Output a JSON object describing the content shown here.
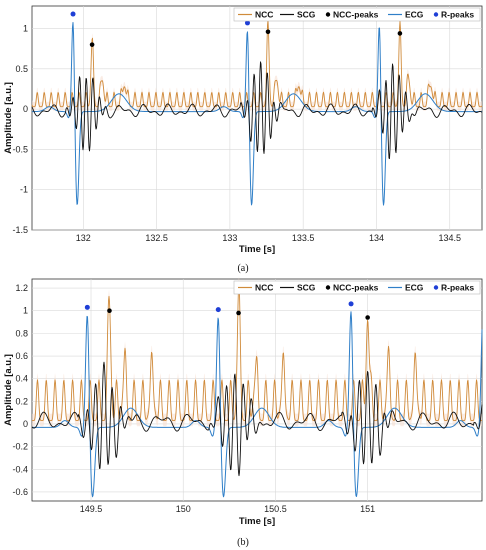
{
  "colors": {
    "NCC": "#d08b3b",
    "SCG": "#111111",
    "NCC-peaks": "#000000",
    "ECG": "#2f7fc8",
    "R-peaks": "#1f3fd6",
    "band": "#f6dccd"
  },
  "chart_data": [
    {
      "type": "line",
      "caption": "(a)",
      "xlabel": "Time [s]",
      "ylabel": "Amplitude [a.u.]",
      "xlim": [
        131.65,
        134.72
      ],
      "ylim": [
        -1.5,
        1.28
      ],
      "xticks": [
        "132",
        "132.5",
        "133",
        "133.5",
        "134",
        "134.5"
      ],
      "xtick_values": [
        132,
        132.5,
        133,
        133.5,
        134,
        134.5
      ],
      "yticks": [
        "-1.5",
        "-1",
        "-0.5",
        "0",
        "0.5",
        "1"
      ],
      "ytick_values": [
        -1.5,
        -1,
        -0.5,
        0,
        0.5,
        1
      ],
      "grid": true,
      "legend_position": "top-right",
      "legend": [
        "NCC",
        "SCG",
        "NCC-peaks",
        "ECG",
        "R-peaks"
      ],
      "beats": [
        131.93,
        133.12,
        134.02
      ],
      "rr": 0.95,
      "ncc_peaks": {
        "x": [
          132.06,
          133.26,
          134.16
        ],
        "y": [
          0.8,
          0.96,
          0.94
        ]
      },
      "r_peaks": {
        "x": [
          131.93,
          133.12,
          134.02
        ],
        "y": [
          1.18,
          1.07,
          1.13
        ]
      },
      "ecg_trough": -1.17
    },
    {
      "type": "line",
      "caption": "(b)",
      "xlabel": "Time [s]",
      "ylabel": "Amplitude [a.u.]",
      "xlim": [
        149.18,
        151.62
      ],
      "ylim": [
        -0.68,
        1.28
      ],
      "xticks": [
        "149.5",
        "150",
        "150.5",
        "151"
      ],
      "xtick_values": [
        149.5,
        150,
        150.5,
        151
      ],
      "yticks": [
        "-0.6",
        "-0.4",
        "-0.2",
        "0",
        "0.2",
        "0.4",
        "0.6",
        "0.8",
        "1",
        "1.2"
      ],
      "ytick_values": [
        -0.6,
        -0.4,
        -0.2,
        0,
        0.2,
        0.4,
        0.6,
        0.8,
        1,
        1.2
      ],
      "grid": true,
      "legend_position": "top-right",
      "legend": [
        "NCC",
        "SCG",
        "NCC-peaks",
        "ECG",
        "R-peaks"
      ],
      "beats": [
        149.48,
        150.19,
        150.91
      ],
      "rr": 0.715,
      "ncc_peaks": {
        "x": [
          149.6,
          150.3,
          151.0
        ],
        "y": [
          1.0,
          0.98,
          0.94
        ]
      },
      "r_peaks": {
        "x": [
          149.48,
          150.19,
          150.91
        ],
        "y": [
          1.03,
          1.01,
          1.06
        ]
      },
      "ecg_trough": -0.62
    }
  ]
}
